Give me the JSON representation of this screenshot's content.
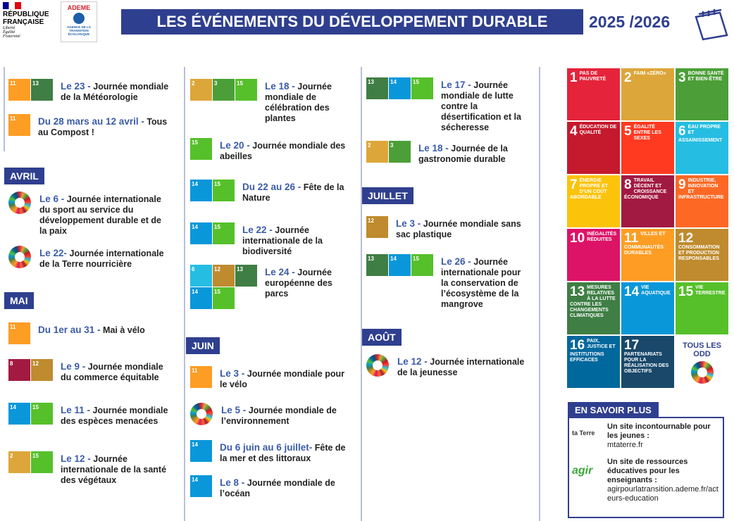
{
  "header": {
    "republique": "RÉPUBLIQUE FRANÇAISE",
    "devise": "Liberté Égalité Fraternité",
    "ademe": "ADEME",
    "ademe_sub": "AGENCE DE LA TRANSITION ÉCOLOGIQUE",
    "title": "LES ÉVÉNEMENTS DU DÉVELOPPEMENT DURABLE",
    "year": "2025 /2026"
  },
  "columns": [
    [
      {
        "goals": [
          11,
          13
        ],
        "date": "Le 23 -",
        "text": "Journée mondiale de la Météorologie"
      },
      {
        "goals": [
          11
        ],
        "date": "Du 28 mars au 12 avril -",
        "text": "Tous au Compost !"
      },
      {
        "month": "AVRIL"
      },
      {
        "icon": "wheel",
        "date": "Le 6 -",
        "text": "Journée internationale du sport au service du développement durable et de la paix"
      },
      {
        "icon": "wheel",
        "date": "Le 22-",
        "text": "Journée internationale de la Terre nourricière"
      },
      {
        "month": "MAI"
      },
      {
        "goals": [
          11
        ],
        "date": "Du 1er au 31 -",
        "text": "Mai à vélo"
      },
      {
        "goals": [
          8,
          12
        ],
        "date": "Le 9 -",
        "text": "Journée mondiale du commerce équitable"
      },
      {
        "goals": [
          14,
          15
        ],
        "date": "Le 11 -",
        "text": "Journée mondiale des espèces menacées"
      },
      {
        "goals": [
          2,
          15
        ],
        "date": "Le 12 -",
        "text": "Journée internationale de la santé des végétaux"
      }
    ],
    [
      {
        "goals": [
          2,
          3,
          15
        ],
        "date": "Le 18 -",
        "text": "Journée mondiale de célébration des plantes"
      },
      {
        "goals": [
          15
        ],
        "date": "Le 20 -",
        "text": "Journée mondiale des abeilles"
      },
      {
        "goals": [
          14,
          15
        ],
        "date": "Du 22 au 26 -",
        "text": "Fête de la Nature"
      },
      {
        "goals": [
          14,
          15
        ],
        "date": "Le 22 -",
        "text": "Journée internationale de la biodiversité"
      },
      {
        "goals": [
          6,
          12,
          13,
          14,
          15
        ],
        "date": "Le 24 -",
        "text": "Journée européenne des parcs"
      },
      {
        "month": "JUIN"
      },
      {
        "goals": [
          11
        ],
        "date": "Le 3 -",
        "text": "Journée mondiale pour le vélo"
      },
      {
        "icon": "wheel",
        "date": "Le 5 -",
        "text": "Journée mondiale de l’environnement"
      },
      {
        "goals": [
          14
        ],
        "date": "Du 6 juin au 6 juillet-",
        "text": "Fête de la mer et des littoraux"
      },
      {
        "goals": [
          14
        ],
        "date": "Le 8 -",
        "text": "Journée mondiale de l’océan"
      }
    ],
    [
      {
        "goals": [
          13,
          14,
          15
        ],
        "date": "Le 17 -",
        "text": "Journée mondiale de lutte contre la désertification et la sécheresse"
      },
      {
        "goals": [
          2,
          3
        ],
        "date": "Le 18 -",
        "text": "Journée de la gastronomie durable"
      },
      {
        "month": "JUILLET"
      },
      {
        "goals": [
          12
        ],
        "date": "Le 3 -",
        "text": "Journée mondiale sans sac plastique"
      },
      {
        "goals": [
          13,
          14,
          15
        ],
        "date": "Le 26 -",
        "text": "Journée internationale pour la conservation de l’écosystème de la mangrove"
      },
      {
        "month": "AOÛT"
      },
      {
        "icon": "wheel",
        "date": "Le 12 -",
        "text": "Journée internationale de la jeunesse"
      }
    ]
  ],
  "sdg": [
    {
      "n": 1,
      "label": "PAS DE PAUVRETÉ"
    },
    {
      "n": 2,
      "label": "FAIM «ZÉRO»"
    },
    {
      "n": 3,
      "label": "BONNE SANTÉ ET BIEN-ÊTRE"
    },
    {
      "n": 4,
      "label": "ÉDUCATION DE QUALITÉ"
    },
    {
      "n": 5,
      "label": "ÉGALITÉ ENTRE LES SEXES"
    },
    {
      "n": 6,
      "label": "EAU PROPRE ET ASSAINISSEMENT"
    },
    {
      "n": 7,
      "label": "ÉNERGIE PROPRE ET D’UN COÛT ABORDABLE"
    },
    {
      "n": 8,
      "label": "TRAVAIL DÉCENT ET CROISSANCE ÉCONOMIQUE"
    },
    {
      "n": 9,
      "label": "INDUSTRIE, INNOVATION ET INFRASTRUCTURE"
    },
    {
      "n": 10,
      "label": "INÉGALITÉS RÉDUITES"
    },
    {
      "n": 11,
      "label": "VILLES ET COMMUNAUTÉS DURABLES"
    },
    {
      "n": 12,
      "label": "CONSOMMATION ET PRODUCTION RESPONSABLES"
    },
    {
      "n": 13,
      "label": "MESURES RELATIVES À LA LUTTE CONTRE LES CHANGEMENTS CLIMATIQUES"
    },
    {
      "n": 14,
      "label": "VIE AQUATIQUE"
    },
    {
      "n": 15,
      "label": "VIE TERRESTRE"
    },
    {
      "n": 16,
      "label": "PAIX, JUSTICE ET INSTITUTIONS EFFICACES"
    },
    {
      "n": 17,
      "label": "PARTENARIATS POUR LA RÉALISATION DES OBJECTIFS"
    }
  ],
  "sdg_all": "TOUS LES ODD",
  "more": {
    "title": "EN SAVOIR PLUS",
    "items": [
      {
        "logo": "ta Terre",
        "text": "Un site incontournable pour les jeunes :",
        "url": "mtaterre.fr"
      },
      {
        "logo": "agir",
        "text": "Un site de ressources éducatives pour les enseignants :",
        "url": "agirpourlatransition.ademe.fr/acteurs-education"
      }
    ]
  }
}
